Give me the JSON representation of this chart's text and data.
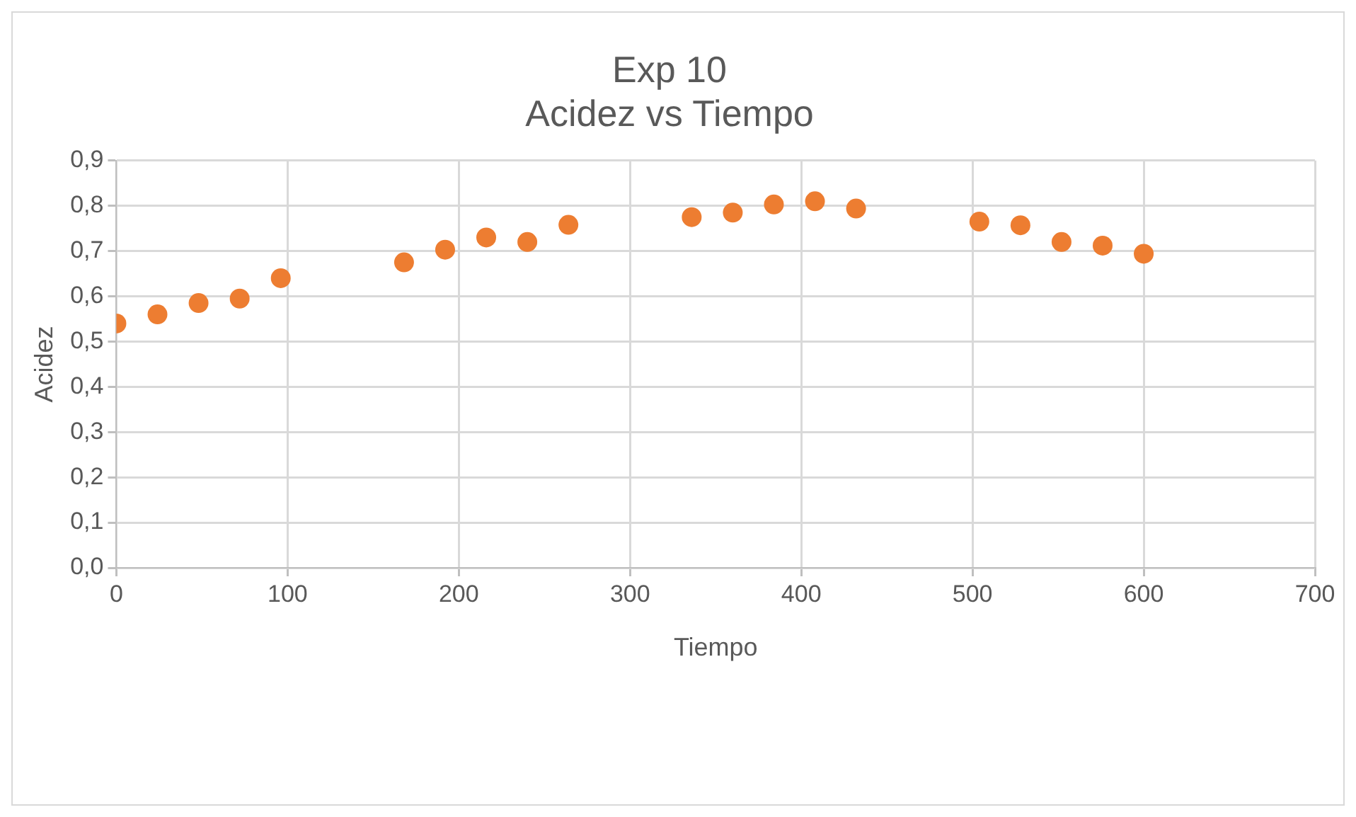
{
  "chart_data": {
    "type": "scatter",
    "title": [
      "Exp 10",
      "Acidez vs Tiempo"
    ],
    "xlabel": "Tiempo",
    "ylabel": "Acidez",
    "x": [
      0,
      24,
      48,
      72,
      96,
      168,
      192,
      216,
      240,
      264,
      336,
      360,
      384,
      408,
      432,
      504,
      528,
      552,
      576,
      600
    ],
    "series": [
      {
        "color": "#ed7d31",
        "values": [
          0.54,
          0.56,
          0.585,
          0.595,
          0.64,
          0.675,
          0.703,
          0.73,
          0.72,
          0.758,
          0.775,
          0.785,
          0.803,
          0.81,
          0.794,
          0.765,
          0.757,
          0.72,
          0.712,
          0.694
        ]
      }
    ],
    "marker": "circle",
    "grid": true,
    "legend": false,
    "xlim": [
      0,
      700
    ],
    "xticks": [
      0,
      100,
      200,
      300,
      400,
      500,
      600,
      700
    ],
    "ylim": [
      0,
      0.9
    ],
    "yticks": [
      {
        "value": 0,
        "label": "0,0"
      },
      {
        "value": 0.1,
        "label": "0,1"
      },
      {
        "value": 0.2,
        "label": "0,2"
      },
      {
        "value": 0.3,
        "label": "0,3"
      },
      {
        "value": 0.4,
        "label": "0,4"
      },
      {
        "value": 0.5,
        "label": "0,5"
      },
      {
        "value": 0.6,
        "label": "0,6"
      },
      {
        "value": 0.7,
        "label": "0,7"
      },
      {
        "value": 0.8,
        "label": "0,8"
      },
      {
        "value": 0.9,
        "label": "0,9"
      }
    ]
  }
}
